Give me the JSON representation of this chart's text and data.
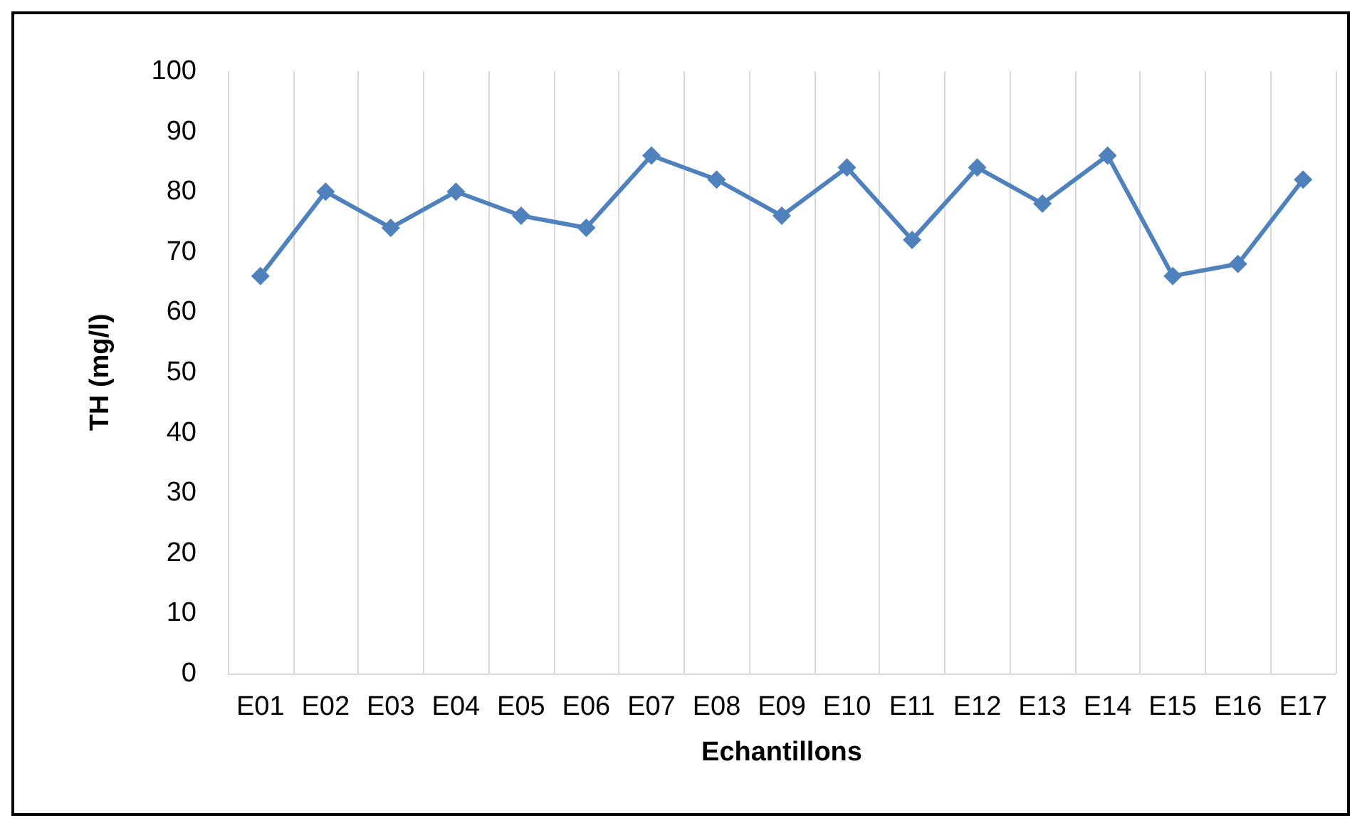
{
  "chart_data": {
    "type": "line",
    "xlabel": "Echantillons",
    "ylabel": "TH (mg/l)",
    "categories": [
      "E01",
      "E02",
      "E03",
      "E04",
      "E05",
      "E06",
      "E07",
      "E08",
      "E09",
      "E10",
      "E11",
      "E12",
      "E13",
      "E14",
      "E15",
      "E16",
      "E17"
    ],
    "series": [
      {
        "color": "#4f81bd",
        "values": [
          66,
          80,
          74,
          80,
          76,
          74,
          86,
          82,
          76,
          84,
          72,
          84,
          78,
          86,
          66,
          68,
          82
        ]
      }
    ],
    "ylim": [
      0,
      100
    ],
    "yticks": [
      0,
      10,
      20,
      30,
      40,
      50,
      60,
      70,
      80,
      90,
      100
    ],
    "grid": "x",
    "marker": "diamond",
    "line_style": "solid"
  }
}
